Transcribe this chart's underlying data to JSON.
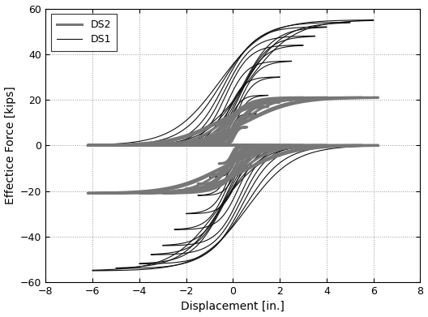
{
  "title": "",
  "xlabel": "Displacement [in.]",
  "ylabel": "Effectice Force [kips]",
  "xlim": [
    -8,
    8
  ],
  "ylim": [
    -60,
    60
  ],
  "xticks": [
    -8,
    -6,
    -4,
    -2,
    0,
    2,
    4,
    6,
    8
  ],
  "yticks": [
    -60,
    -40,
    -20,
    0,
    20,
    40,
    60
  ],
  "ds2_color": "#777777",
  "ds1_color": "#111111",
  "ds2_linewidth": 2.2,
  "ds1_linewidth": 0.8,
  "background_color": "#ffffff",
  "grid_color": "#999999",
  "grid_linestyle": ":",
  "legend_loc": "upper left",
  "ds1_amplitudes": [
    0.6,
    1.0,
    1.5,
    2.0,
    2.5,
    3.0,
    3.5,
    4.0,
    5.0,
    6.0
  ],
  "ds1_force_pos": [
    8,
    14,
    22,
    30,
    37,
    44,
    48,
    52,
    54,
    55
  ],
  "ds1_force_neg": [
    8,
    14,
    22,
    30,
    37,
    44,
    48,
    52,
    54,
    55
  ],
  "ds2_amplitudes": [
    0.6,
    1.0,
    1.5,
    2.0,
    2.5,
    3.0,
    4.0,
    5.5,
    6.2
  ],
  "ds2_force_pos": [
    8,
    13,
    17,
    19,
    20,
    21,
    21,
    21,
    21
  ],
  "ds2_force_neg": [
    8,
    13,
    17,
    19,
    20,
    21,
    21,
    21,
    21
  ]
}
